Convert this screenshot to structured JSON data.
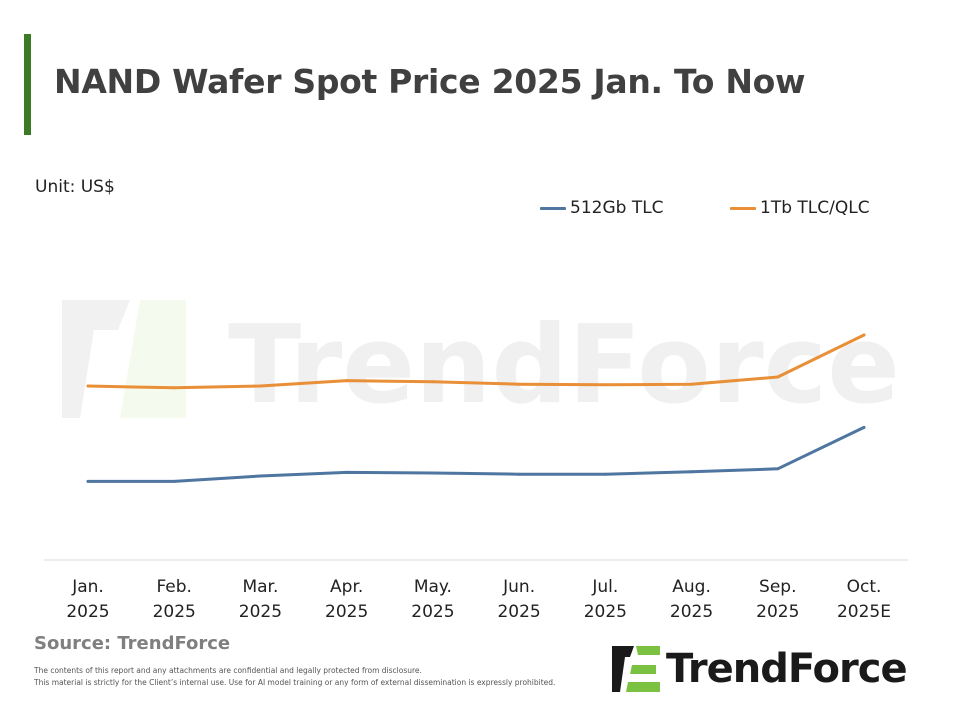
{
  "header": {
    "title": "NAND Wafer Spot Price 2025 Jan. To Now",
    "accent_color": "#3c7a26"
  },
  "unit_label": "Unit: US$",
  "legend": [
    {
      "label": "512Gb TLC",
      "color": "#4e76a0"
    },
    {
      "label": "1Tb TLC/QLC",
      "color": "#e88f37"
    }
  ],
  "chart_data": {
    "type": "line",
    "title": "NAND Wafer Spot Price 2025 Jan. To Now",
    "xlabel": "",
    "ylabel": "Unit: US$",
    "categories": [
      [
        "Jan.",
        "2025"
      ],
      [
        "Feb.",
        "2025"
      ],
      [
        "Mar.",
        "2025"
      ],
      [
        "Apr.",
        "2025"
      ],
      [
        "May.",
        "2025"
      ],
      [
        "Jun.",
        "2025"
      ],
      [
        "Jul.",
        "2025"
      ],
      [
        "Aug.",
        "2025"
      ],
      [
        "Sep.",
        "2025"
      ],
      [
        "Oct.",
        "2025E"
      ]
    ],
    "series": [
      {
        "name": "512Gb TLC",
        "color": "#4e76a0",
        "values": [
          2.62,
          2.62,
          2.8,
          2.92,
          2.9,
          2.86,
          2.86,
          2.94,
          3.04,
          4.42
        ]
      },
      {
        "name": "1Tb TLC/QLC",
        "color": "#e88f37",
        "values": [
          5.8,
          5.74,
          5.8,
          5.98,
          5.94,
          5.86,
          5.84,
          5.86,
          6.1,
          7.5
        ]
      }
    ],
    "ylim": [
      0,
      10
    ],
    "y_axis_shown": false,
    "grid": false,
    "legend_position": "top-right"
  },
  "watermark_text": "TrendForce",
  "footer": {
    "source": "Source: TrendForce",
    "disclaimer_1": "The contents of this report and any attachments are confidential and legally protected from disclosure.",
    "disclaimer_2": "This material is strictly for the Client’s internal use. Use for AI model training or any form of external dissemination is expressly prohibited.",
    "logo_text": "TrendForce"
  }
}
